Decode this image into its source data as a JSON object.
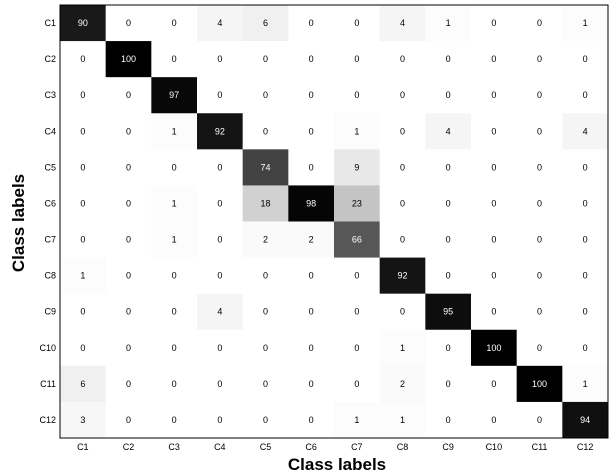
{
  "chart_data": {
    "type": "heatmap",
    "xlabel": "Class labels",
    "ylabel": "Class labels",
    "x_categories": [
      "C1",
      "C2",
      "C3",
      "C4",
      "C5",
      "C6",
      "C7",
      "C8",
      "C9",
      "C10",
      "C11",
      "C12"
    ],
    "y_categories": [
      "C1",
      "C2",
      "C3",
      "C4",
      "C5",
      "C6",
      "C7",
      "C8",
      "C9",
      "C10",
      "C11",
      "C12"
    ],
    "values": [
      [
        90,
        0,
        0,
        4,
        6,
        0,
        0,
        4,
        1,
        0,
        0,
        1
      ],
      [
        0,
        100,
        0,
        0,
        0,
        0,
        0,
        0,
        0,
        0,
        0,
        0
      ],
      [
        0,
        0,
        97,
        0,
        0,
        0,
        0,
        0,
        0,
        0,
        0,
        0
      ],
      [
        0,
        0,
        1,
        92,
        0,
        0,
        1,
        0,
        4,
        0,
        0,
        4
      ],
      [
        0,
        0,
        0,
        0,
        74,
        0,
        9,
        0,
        0,
        0,
        0,
        0
      ],
      [
        0,
        0,
        1,
        0,
        18,
        98,
        23,
        0,
        0,
        0,
        0,
        0
      ],
      [
        0,
        0,
        1,
        0,
        2,
        2,
        66,
        0,
        0,
        0,
        0,
        0
      ],
      [
        1,
        0,
        0,
        0,
        0,
        0,
        0,
        92,
        0,
        0,
        0,
        0
      ],
      [
        0,
        0,
        0,
        4,
        0,
        0,
        0,
        0,
        95,
        0,
        0,
        0
      ],
      [
        0,
        0,
        0,
        0,
        0,
        0,
        0,
        1,
        0,
        100,
        0,
        0
      ],
      [
        6,
        0,
        0,
        0,
        0,
        0,
        0,
        2,
        0,
        0,
        100,
        1
      ],
      [
        3,
        0,
        0,
        0,
        0,
        0,
        1,
        1,
        0,
        0,
        0,
        94
      ]
    ],
    "value_range": [
      0,
      100
    ],
    "colormap": "gray-reversed",
    "grid": false
  }
}
